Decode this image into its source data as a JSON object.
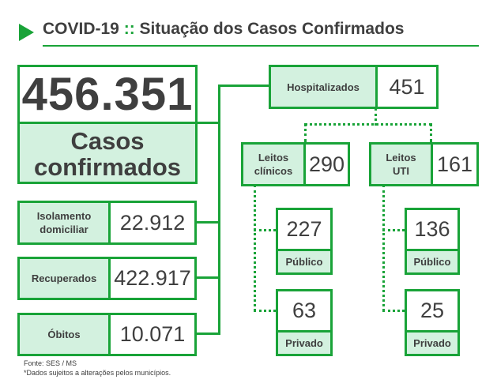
{
  "header": {
    "title_left": "COVID-19",
    "separator": "::",
    "title_right": "Situação dos Casos Confirmados"
  },
  "total": {
    "value": "456.351",
    "label_line1": "Casos",
    "label_line2": "confirmados"
  },
  "isolamento": {
    "label_line1": "Isolamento",
    "label_line2": "domiciliar",
    "value": "22.912"
  },
  "recuperados": {
    "label": "Recuperados",
    "value": "422.917"
  },
  "obitos": {
    "label": "Óbitos",
    "value": "10.071"
  },
  "hospitalizados": {
    "label": "Hospitalizados",
    "value": "451"
  },
  "leitos_clinicos": {
    "label_line1": "Leitos",
    "label_line2": "clínicos",
    "value": "290",
    "publico": {
      "value": "227",
      "label": "Público"
    },
    "privado": {
      "value": "63",
      "label": "Privado"
    }
  },
  "leitos_uti": {
    "label_line1": "Leitos",
    "label_line2": "UTI",
    "value": "161",
    "publico": {
      "value": "136",
      "label": "Público"
    },
    "privado": {
      "value": "25",
      "label": "Privado"
    }
  },
  "footer": {
    "source": "Fonte: SES / MS",
    "note": "*Dados sujeitos a alterações pelos municípios."
  },
  "colors": {
    "accent": "#19a338",
    "label_bg": "#d3f1df",
    "text": "#3f3f3f"
  }
}
